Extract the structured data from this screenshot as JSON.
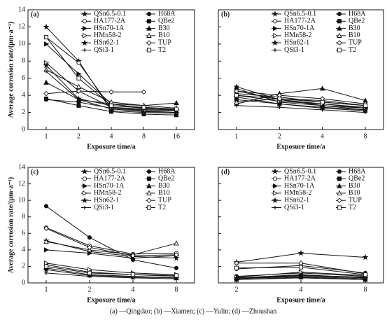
{
  "chart_data": [
    {
      "type": "line",
      "panel": "(a)",
      "ylabel": "Average corrosion rate/(μm·a⁻¹)",
      "xlabel": "Exposure time/a",
      "categories": [
        "1",
        "2",
        "4",
        "8",
        "16"
      ],
      "ylim": [
        0,
        14
      ],
      "yticks": [
        0,
        2,
        4,
        6,
        8,
        10,
        12,
        14
      ],
      "ytick_labels": true,
      "color": "#111",
      "series": [
        {
          "name": "QSn6.5-0.1",
          "marker": "star",
          "values": [
            12,
            8,
            2.2,
            2.0,
            1.9
          ]
        },
        {
          "name": "H68A",
          "marker": "circle",
          "values": [
            3.5,
            3.2,
            2.5,
            2.3,
            2.2
          ]
        },
        {
          "name": "HA177-2A",
          "marker": "circle-open",
          "values": [
            10.8,
            7.8,
            2.5,
            2.2,
            2.0
          ]
        },
        {
          "name": "QBe2",
          "marker": "square",
          "values": [
            3.6,
            2.8,
            2.1,
            1.8,
            1.7
          ]
        },
        {
          "name": "HSn70-1A",
          "marker": "tri-right",
          "values": [
            10,
            6.5,
            3.0,
            2.5,
            2.3
          ]
        },
        {
          "name": "B30",
          "marker": "tri",
          "values": [
            5.5,
            3.5,
            3.0,
            2.8,
            3.1
          ]
        },
        {
          "name": "HMn58-2",
          "marker": "tri-right-open",
          "values": [
            7.8,
            4.5,
            2.6,
            2.4,
            2.3
          ]
        },
        {
          "name": "B10",
          "marker": "tri-open",
          "values": [
            7.0,
            5.0,
            3.2,
            2.8,
            2.5
          ]
        },
        {
          "name": "HSn62-1",
          "marker": "star",
          "values": [
            7.5,
            3.6,
            2.8,
            2.5,
            2.2
          ]
        },
        {
          "name": "TUP",
          "marker": "diamond-open",
          "values": [
            4.2,
            4.5,
            4.4,
            4.4,
            null
          ]
        },
        {
          "name": "QSi3-1",
          "marker": "plus",
          "values": [
            6.8,
            3.5,
            2.4,
            2.1,
            2.0
          ]
        },
        {
          "name": "T2",
          "marker": "square-open",
          "values": [
            10.8,
            6.0,
            2.8,
            2.6,
            2.4
          ]
        }
      ]
    },
    {
      "type": "line",
      "panel": "(b)",
      "xlabel": "Exposure time/a",
      "categories": [
        "1",
        "2",
        "4",
        "8"
      ],
      "ylim": [
        0,
        14
      ],
      "yticks": [
        0,
        2,
        4,
        6,
        8,
        10,
        12,
        14
      ],
      "ytick_labels": false,
      "color": "#111",
      "series": [
        {
          "name": "QSn6.5-0.1",
          "marker": "star",
          "values": [
            5.0,
            3.5,
            3.0,
            2.5
          ]
        },
        {
          "name": "H68A",
          "marker": "circle",
          "values": [
            4.8,
            3.2,
            2.8,
            2.3
          ]
        },
        {
          "name": "HA177-2A",
          "marker": "circle-open",
          "values": [
            4.2,
            3.8,
            3.2,
            2.8
          ]
        },
        {
          "name": "QBe2",
          "marker": "square",
          "values": [
            3.5,
            3.0,
            2.5,
            2.2
          ]
        },
        {
          "name": "HSn70-1A",
          "marker": "tri-right",
          "values": [
            4.5,
            3.5,
            2.8,
            2.5
          ]
        },
        {
          "name": "B30",
          "marker": "tri",
          "values": [
            3.0,
            4.2,
            4.8,
            3.4
          ]
        },
        {
          "name": "HMn58-2",
          "marker": "tri-right-open",
          "values": [
            4.0,
            3.3,
            3.0,
            2.6
          ]
        },
        {
          "name": "B10",
          "marker": "tri-open",
          "values": [
            3.2,
            3.6,
            3.4,
            2.8
          ]
        },
        {
          "name": "HSn62-1",
          "marker": "star",
          "values": [
            3.8,
            3.0,
            2.6,
            2.3
          ]
        },
        {
          "name": "TUP",
          "marker": "diamond-open",
          "values": [
            4.5,
            4.0,
            3.6,
            3.0
          ]
        },
        {
          "name": "QSi3-1",
          "marker": "plus",
          "values": [
            2.8,
            2.6,
            2.3,
            2.0
          ]
        },
        {
          "name": "T2",
          "marker": "square-open",
          "values": [
            4.0,
            3.6,
            3.2,
            2.8
          ]
        }
      ]
    },
    {
      "type": "line",
      "panel": "(c)",
      "ylabel": "Average corrosion rate/(μm·a⁻¹)",
      "xlabel": "Exposure time/a",
      "categories": [
        "1",
        "2",
        "4",
        "8"
      ],
      "ylim": [
        0,
        14
      ],
      "yticks": [
        0,
        2,
        4,
        6,
        8,
        10,
        12,
        14
      ],
      "ytick_labels": true,
      "color": "#111",
      "series": [
        {
          "name": "QSn6.5-0.1",
          "marker": "star",
          "values": [
            5.1,
            3.8,
            3.2,
            3.0
          ]
        },
        {
          "name": "H68A",
          "marker": "circle",
          "values": [
            9.3,
            5.5,
            2.8,
            1.8
          ]
        },
        {
          "name": "HA177-2A",
          "marker": "circle-open",
          "values": [
            6.7,
            4.5,
            3.5,
            3.6
          ]
        },
        {
          "name": "QBe2",
          "marker": "square",
          "values": [
            2.2,
            1.3,
            1.0,
            0.8
          ]
        },
        {
          "name": "HSn70-1A",
          "marker": "tri-right",
          "values": [
            4.0,
            3.6,
            3.0,
            3.3
          ]
        },
        {
          "name": "B30",
          "marker": "tri",
          "values": [
            1.8,
            1.0,
            0.8,
            0.6
          ]
        },
        {
          "name": "HMn58-2",
          "marker": "tri-right-open",
          "values": [
            2.4,
            1.6,
            1.2,
            1.0
          ]
        },
        {
          "name": "B10",
          "marker": "tri-open",
          "values": [
            5.0,
            4.0,
            3.4,
            4.8
          ]
        },
        {
          "name": "HSn62-1",
          "marker": "star",
          "values": [
            1.6,
            0.9,
            0.7,
            0.6
          ]
        },
        {
          "name": "TUP",
          "marker": "diamond-open",
          "values": [
            6.6,
            4.3,
            3.3,
            3.4
          ]
        },
        {
          "name": "QSi3-1",
          "marker": "plus",
          "values": [
            1.2,
            0.8,
            0.6,
            0.5
          ]
        },
        {
          "name": "T2",
          "marker": "square-open",
          "values": [
            2.0,
            1.2,
            1.0,
            0.9
          ]
        }
      ]
    },
    {
      "type": "line",
      "panel": "(d)",
      "xlabel": "Exposure time/a",
      "categories": [
        "2",
        "4",
        "8"
      ],
      "ylim": [
        0,
        14
      ],
      "yticks": [
        0,
        2,
        4,
        6,
        8,
        10,
        12,
        14
      ],
      "ytick_labels": false,
      "color": "#111",
      "series": [
        {
          "name": "QSn6.5-0.1",
          "marker": "star",
          "values": [
            2.5,
            3.6,
            3.1
          ]
        },
        {
          "name": "H68A",
          "marker": "circle",
          "values": [
            0.8,
            1.2,
            0.8
          ]
        },
        {
          "name": "HA177-2A",
          "marker": "circle-open",
          "values": [
            1.7,
            2.1,
            1.2
          ]
        },
        {
          "name": "QBe2",
          "marker": "square",
          "values": [
            0.5,
            0.8,
            0.5
          ]
        },
        {
          "name": "HSn70-1A",
          "marker": "tri-right",
          "values": [
            0.6,
            1.0,
            0.6
          ]
        },
        {
          "name": "B30",
          "marker": "tri",
          "values": [
            0.4,
            0.7,
            0.4
          ]
        },
        {
          "name": "HMn58-2",
          "marker": "tri-right-open",
          "values": [
            0.7,
            1.3,
            0.9
          ]
        },
        {
          "name": "B10",
          "marker": "tri-open",
          "values": [
            0.6,
            0.9,
            0.7
          ]
        },
        {
          "name": "HSn62-1",
          "marker": "star",
          "values": [
            0.5,
            0.9,
            0.6
          ]
        },
        {
          "name": "TUP",
          "marker": "diamond-open",
          "values": [
            2.4,
            2.4,
            1.1
          ]
        },
        {
          "name": "QSi3-1",
          "marker": "plus",
          "values": [
            0.4,
            0.6,
            0.4
          ]
        },
        {
          "name": "T2",
          "marker": "square-open",
          "values": [
            1.8,
            1.9,
            1.0
          ]
        }
      ]
    }
  ],
  "caption": "(a) —Qingdao; (b) —Xiamen; (c) —Yulin; (d) —Zhoushan"
}
